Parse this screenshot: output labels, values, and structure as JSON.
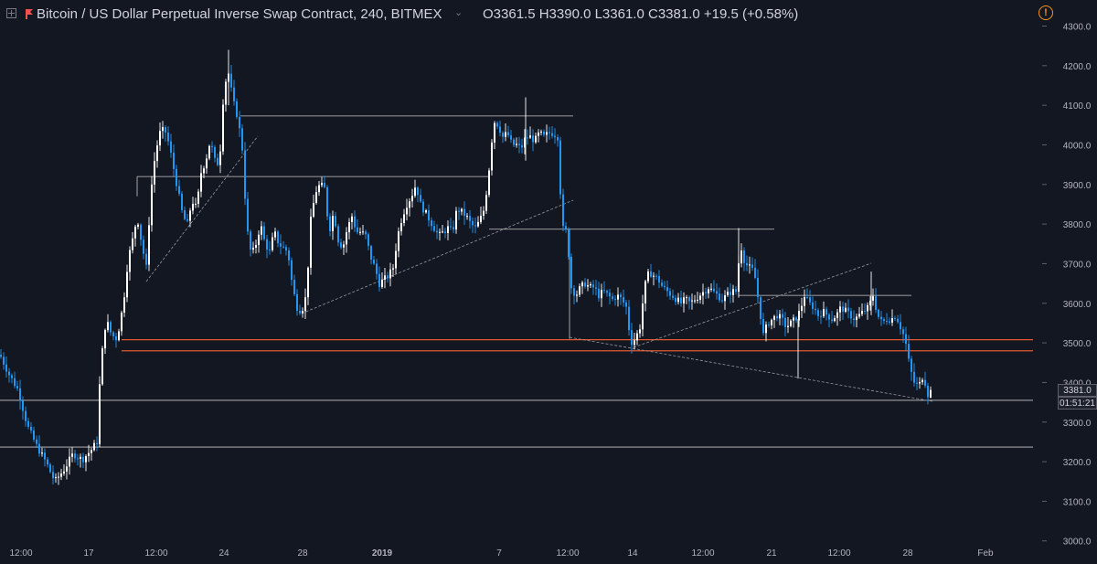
{
  "header": {
    "title": "Bitcoin / US Dollar Perpetual Inverse Swap Contract, 240, BITMEX",
    "ohlc": "O3361.5   H3390.0   L3361.0   C3381.0   +19.5 (+0.58%)",
    "warning_icon": "warning-icon"
  },
  "current_price_label": "3381.0",
  "countdown_label": "01:51:21",
  "colors": {
    "background": "#131722",
    "candle_up": "#ffffff",
    "candle_down": "#2196f3",
    "support_lines": "#c8c8c8",
    "key_zone": "#e2592d",
    "grid_text": "#b2b5be"
  },
  "chart_data": {
    "type": "candlestick",
    "symbol": "XBTUSD",
    "interval": "240",
    "ylim": [
      3000,
      4300
    ],
    "y_ticks": [
      "4300.0",
      "4200.0",
      "4100.0",
      "4000.0",
      "3900.0",
      "3800.0",
      "3700.0",
      "3600.0",
      "3500.0",
      "3400.0",
      "3300.0",
      "3200.0",
      "3100.0",
      "3000.0"
    ],
    "x_ticks": [
      "12:00",
      "17",
      "12:00",
      "24",
      "28",
      "2019",
      "7",
      "12:00",
      "14",
      "12:00",
      "21",
      "12:00",
      "28",
      "Feb"
    ],
    "last": {
      "open": 3361.5,
      "high": 3390.0,
      "low": 3361.0,
      "close": 3381.0,
      "change": 19.5,
      "change_pct": 0.58
    },
    "horizontal_levels": [
      {
        "price": 4073,
        "x_start": "24",
        "x_end": "7+",
        "color": "#c8c8c8"
      },
      {
        "price": 3920,
        "x_start": "12:00 (Dec 18)",
        "x_end": "7",
        "color": "#c8c8c8"
      },
      {
        "price": 3787,
        "x_start": "7+",
        "x_end": "21",
        "color": "#c8c8c8"
      },
      {
        "price": 3620,
        "x_start": "21-",
        "x_end": "28",
        "color": "#c8c8c8"
      },
      {
        "price": 3508,
        "x_start": "17",
        "x_end": "right edge",
        "color": "#e2592d"
      },
      {
        "price": 3480,
        "x_start": "17",
        "x_end": "right edge",
        "color": "#e2592d"
      },
      {
        "price": 3355,
        "x_start": "left edge",
        "x_end": "right edge",
        "color": "#c8c8c8"
      },
      {
        "price": 3237,
        "x_start": "left edge",
        "x_end": "right edge",
        "color": "#c8c8c8"
      }
    ]
  }
}
